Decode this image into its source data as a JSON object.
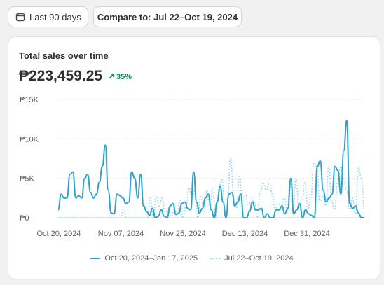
{
  "toolbar": {
    "date_range_label": "Last 90 days",
    "compare_label": "Compare to: Jul 22–Oct 19, 2024"
  },
  "card": {
    "title": "Total sales over time",
    "total": "₱223,459.25",
    "delta": "35%",
    "delta_direction": "up"
  },
  "colors": {
    "current": "#2aa4cf",
    "previous": "#8fd0e8",
    "delta_positive": "#0c8a4f"
  },
  "chart_data": {
    "type": "line",
    "title": "Total sales over time",
    "ylim": [
      0,
      15000
    ],
    "y_ticks": [
      "₱15K",
      "₱10K",
      "₱5K",
      "₱0"
    ],
    "x_ticks": [
      "Oct 20, 2024",
      "Nov 07, 2024",
      "Nov 25, 2024",
      "Dec 13, 2024",
      "Dec 31, 2024"
    ],
    "grid": true,
    "legend_position": "bottom",
    "series": [
      {
        "name": "Oct 20, 2024–Jan 17, 2025",
        "style": "solid",
        "values": [
          1000,
          3000,
          2500,
          2500,
          5500,
          5800,
          2500,
          2800,
          2500,
          5000,
          5500,
          3200,
          2500,
          3000,
          4500,
          6500,
          9200,
          3500,
          600,
          500,
          3000,
          2800,
          2500,
          1800,
          2000,
          5800,
          5000,
          2500,
          5500,
          1500,
          800,
          300,
          1200,
          0,
          200,
          1000,
          200,
          0,
          1500,
          1800,
          400,
          600,
          1800,
          2000,
          1200,
          1000,
          5800,
          2000,
          600,
          1200,
          2500,
          3000,
          1000,
          0,
          2000,
          4000,
          2000,
          0,
          3000,
          3200,
          1500,
          2000,
          3000,
          0,
          0,
          800,
          2000,
          1000,
          1000,
          1200,
          0,
          500,
          0,
          0,
          1000,
          1000,
          1500,
          500,
          1200,
          5000,
          500,
          1000,
          1800,
          0,
          1000,
          500,
          300,
          0,
          6500,
          7200,
          3500,
          2000,
          2500,
          3000,
          6500,
          6000,
          3000,
          8500,
          12300,
          1800,
          1200,
          1500,
          600,
          0,
          0
        ]
      },
      {
        "name": "Jul 22–Oct 19, 2024",
        "style": "dotted",
        "values": [
          0,
          0,
          0,
          0,
          0,
          0,
          0,
          0,
          0,
          0,
          0,
          0,
          0,
          0,
          0,
          0,
          0,
          0,
          0,
          0,
          0,
          0,
          1000,
          0,
          0,
          0,
          0,
          0,
          0,
          0,
          0,
          2500,
          0,
          2800,
          1500,
          2500,
          500,
          1200,
          0,
          1000,
          500,
          2200,
          0,
          1500,
          3800,
          2500,
          3500,
          0,
          2800,
          500,
          3500,
          1500,
          3800,
          0,
          3000,
          5000,
          2000,
          2500,
          7600,
          2800,
          1200,
          5200,
          2000,
          3000,
          1500,
          2500,
          2000,
          0,
          3200,
          4500,
          3500,
          4300,
          3000,
          1000,
          2000,
          1000,
          2500,
          800,
          4500,
          500,
          5000,
          1500,
          2000,
          4500,
          1000,
          2500,
          7000,
          6500,
          2000,
          2800,
          1500,
          6500,
          2000,
          1000,
          4500,
          6500,
          5000,
          3500,
          1000,
          2500,
          500,
          6500,
          5000,
          1000
        ]
      }
    ]
  }
}
